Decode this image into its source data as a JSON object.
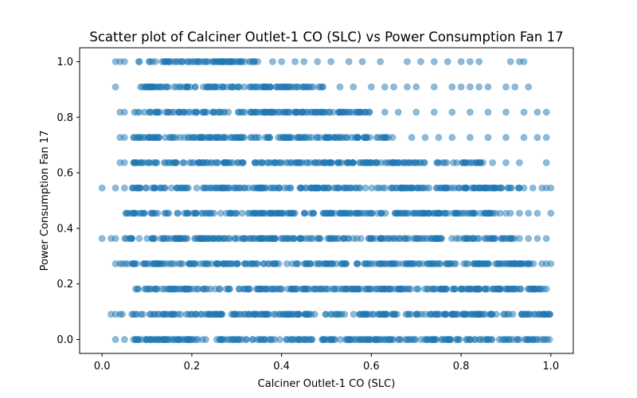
{
  "chart_data": {
    "type": "scatter",
    "title": "Scatter plot of Calciner Outlet-1 CO (SLC) vs Power Consumption Fan 17",
    "xlabel": "Calciner Outlet-1 CO (SLC)",
    "ylabel": "Power Consumption Fan 17",
    "xlim": [
      -0.05,
      1.05
    ],
    "ylim": [
      -0.05,
      1.05
    ],
    "xticks": [
      0.0,
      0.2,
      0.4,
      0.6,
      0.8,
      1.0
    ],
    "xtick_labels": [
      "0.0",
      "0.2",
      "0.4",
      "0.6",
      "0.8",
      "1.0"
    ],
    "yticks": [
      0.0,
      0.2,
      0.4,
      0.6,
      0.8,
      1.0
    ],
    "ytick_labels": [
      "0.0",
      "0.2",
      "0.4",
      "0.6",
      "0.8",
      "1.0"
    ],
    "grid": false,
    "marker_color": "#1f77b4",
    "marker_alpha": 0.5,
    "series": [
      {
        "levels": [
          {
            "y": 0.0,
            "dense_range": [
              0.07,
              1.0
            ],
            "sparse_x": [
              0.03,
              0.05
            ]
          },
          {
            "y": 0.0909,
            "dense_range": [
              0.06,
              1.0
            ],
            "sparse_x": [
              0.02,
              0.03,
              0.04,
              0.045
            ]
          },
          {
            "y": 0.1818,
            "dense_range": [
              0.07,
              1.0
            ],
            "sparse_x": [
              0.075
            ]
          },
          {
            "y": 0.2727,
            "dense_range": [
              0.05,
              0.97
            ],
            "sparse_x": [
              0.03,
              0.04,
              0.045,
              0.98,
              0.99,
              1.0
            ]
          },
          {
            "y": 0.3636,
            "dense_range": [
              0.05,
              0.92
            ],
            "sparse_x": [
              0.0,
              0.02,
              0.03,
              0.93,
              0.95,
              0.97,
              0.99
            ]
          },
          {
            "y": 0.4545,
            "dense_range": [
              0.05,
              0.9
            ],
            "sparse_x": [
              0.91,
              0.93,
              0.95,
              0.97,
              1.0
            ]
          },
          {
            "y": 0.5455,
            "dense_range": [
              0.06,
              0.93
            ],
            "sparse_x": [
              0.0,
              0.03,
              0.05,
              0.94,
              0.96,
              0.98,
              0.99,
              1.0
            ]
          },
          {
            "y": 0.6364,
            "dense_range": [
              0.07,
              0.85
            ],
            "sparse_x": [
              0.04,
              0.05,
              0.87,
              0.9,
              0.93,
              0.99
            ]
          },
          {
            "y": 0.7273,
            "dense_range": [
              0.07,
              0.65
            ],
            "sparse_x": [
              0.04,
              0.05,
              0.69,
              0.72,
              0.75,
              0.78,
              0.82,
              0.86,
              0.9,
              0.94,
              0.97,
              0.99
            ]
          },
          {
            "y": 0.8182,
            "dense_range": [
              0.07,
              0.6
            ],
            "sparse_x": [
              0.04,
              0.05,
              0.63,
              0.66,
              0.7,
              0.74,
              0.78,
              0.82,
              0.86,
              0.9,
              0.94,
              0.97,
              0.99
            ]
          },
          {
            "y": 0.9091,
            "dense_range": [
              0.08,
              0.5
            ],
            "sparse_x": [
              0.03,
              0.53,
              0.56,
              0.6,
              0.63,
              0.65,
              0.68,
              0.7,
              0.74,
              0.78,
              0.8,
              0.82,
              0.84,
              0.86,
              0.9,
              0.92,
              0.95
            ]
          },
          {
            "y": 1.0,
            "dense_range": [
              0.08,
              0.35
            ],
            "sparse_x": [
              0.03,
              0.04,
              0.05,
              0.38,
              0.4,
              0.43,
              0.45,
              0.48,
              0.51,
              0.55,
              0.58,
              0.62,
              0.68,
              0.71,
              0.74,
              0.77,
              0.8,
              0.82,
              0.84,
              0.91,
              0.93,
              0.94
            ]
          }
        ]
      }
    ]
  }
}
